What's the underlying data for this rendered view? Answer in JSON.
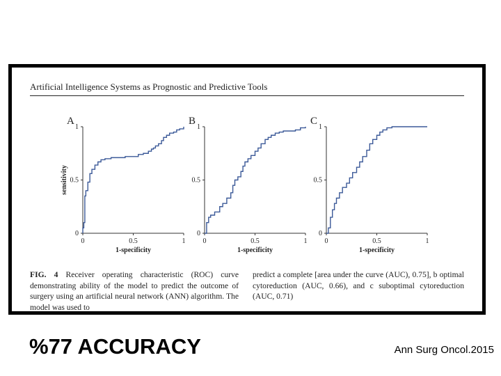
{
  "slide": {
    "headline": "%77 ACCURACY",
    "citation": "Ann Surg Oncol.2015"
  },
  "figure": {
    "header": "Artificial Intelligence Systems as Prognostic and Predictive Tools",
    "caption_label": "FIG. 4",
    "caption_left": "Receiver operating characteristic (ROC) curve demonstrating ability of the model to predict the outcome of surgery using an artificial neural network (ANN) algorithm. The model was used to",
    "caption_right": "predict a complete [area under the curve (AUC), 0.75], b optimal cytoreduction (AUC, 0.66), and c suboptimal cytoreduction (AUC, 0.71)"
  },
  "colors": {
    "curve": "#3b5998",
    "axis": "#333333",
    "frame": "#000000"
  },
  "chart_data": [
    {
      "type": "line",
      "panel_label": "A",
      "title": "",
      "xlabel": "1-specificity",
      "ylabel": "sensitivity",
      "xlim": [
        0,
        1
      ],
      "ylim": [
        0,
        1
      ],
      "x_ticks": [
        "0",
        "0.5",
        "1"
      ],
      "y_ticks": [
        "0",
        "0.5",
        "1"
      ],
      "auc": 0.75,
      "series": [
        {
          "name": "ROC",
          "step": true,
          "x": [
            0,
            0,
            0.01,
            0.02,
            0.03,
            0.05,
            0.07,
            0.09,
            0.12,
            0.15,
            0.18,
            0.22,
            0.28,
            0.35,
            0.42,
            0.5,
            0.55,
            0.6,
            0.65,
            0.68,
            0.7,
            0.72,
            0.75,
            0.78,
            0.8,
            0.83,
            0.86,
            0.9,
            0.93,
            0.96,
            1
          ],
          "y": [
            0,
            0.05,
            0.1,
            0.35,
            0.4,
            0.48,
            0.56,
            0.6,
            0.64,
            0.67,
            0.69,
            0.7,
            0.71,
            0.71,
            0.72,
            0.72,
            0.74,
            0.75,
            0.77,
            0.79,
            0.8,
            0.82,
            0.84,
            0.87,
            0.9,
            0.92,
            0.94,
            0.95,
            0.97,
            0.98,
            1
          ]
        }
      ]
    },
    {
      "type": "line",
      "panel_label": "B",
      "title": "",
      "xlabel": "1-specificity",
      "ylabel": "",
      "xlim": [
        0,
        1
      ],
      "ylim": [
        0,
        1
      ],
      "x_ticks": [
        "0",
        "0.5",
        "1"
      ],
      "y_ticks": [
        "0",
        "0.5",
        "1"
      ],
      "auc": 0.66,
      "series": [
        {
          "name": "ROC",
          "step": true,
          "x": [
            0,
            0.02,
            0.04,
            0.06,
            0.1,
            0.15,
            0.18,
            0.22,
            0.26,
            0.28,
            0.3,
            0.33,
            0.36,
            0.38,
            0.4,
            0.43,
            0.46,
            0.5,
            0.53,
            0.56,
            0.6,
            0.63,
            0.66,
            0.7,
            0.74,
            0.78,
            0.84,
            0.9,
            0.95,
            1
          ],
          "y": [
            0,
            0.1,
            0.15,
            0.17,
            0.2,
            0.25,
            0.28,
            0.33,
            0.38,
            0.45,
            0.5,
            0.53,
            0.58,
            0.63,
            0.67,
            0.7,
            0.73,
            0.77,
            0.8,
            0.84,
            0.88,
            0.9,
            0.92,
            0.94,
            0.95,
            0.96,
            0.96,
            0.97,
            0.99,
            1
          ]
        }
      ]
    },
    {
      "type": "line",
      "panel_label": "C",
      "title": "",
      "xlabel": "1-specificity",
      "ylabel": "",
      "xlim": [
        0,
        1
      ],
      "ylim": [
        0,
        1
      ],
      "x_ticks": [
        "0",
        "0.5",
        "1"
      ],
      "y_ticks": [
        "0",
        "0.5",
        "1"
      ],
      "auc": 0.71,
      "series": [
        {
          "name": "ROC",
          "step": true,
          "x": [
            0,
            0.02,
            0.04,
            0.06,
            0.08,
            0.1,
            0.13,
            0.16,
            0.2,
            0.23,
            0.26,
            0.3,
            0.33,
            0.36,
            0.4,
            0.43,
            0.46,
            0.5,
            0.53,
            0.56,
            0.6,
            0.65,
            0.7,
            0.8,
            1
          ],
          "y": [
            0,
            0.05,
            0.15,
            0.22,
            0.28,
            0.33,
            0.38,
            0.43,
            0.47,
            0.52,
            0.57,
            0.62,
            0.67,
            0.72,
            0.78,
            0.84,
            0.88,
            0.92,
            0.95,
            0.97,
            0.99,
            1,
            1,
            1,
            1
          ]
        }
      ]
    }
  ]
}
